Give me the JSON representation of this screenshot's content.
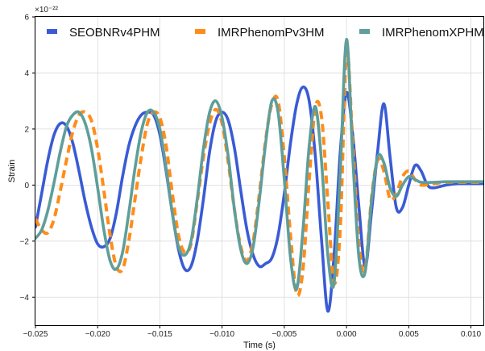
{
  "chart_data": {
    "type": "line",
    "xlabel": "Time (s)",
    "ylabel": "Strain",
    "y_scale_label": "×10⁻²²",
    "xlim": [
      -0.025,
      0.011
    ],
    "ylim": [
      -5,
      6
    ],
    "x_ticks": [
      -0.025,
      -0.02,
      -0.015,
      -0.01,
      -0.005,
      0.0,
      0.005,
      0.01
    ],
    "x_tick_labels": [
      "−0.025",
      "−0.020",
      "−0.015",
      "−0.010",
      "−0.005",
      "0.000",
      "0.005",
      "0.010"
    ],
    "y_ticks": [
      -4,
      -2,
      0,
      2,
      4,
      6
    ],
    "y_tick_labels": [
      "−4",
      "−2",
      "0",
      "2",
      "4",
      "6"
    ],
    "grid": true,
    "legend_position": "top",
    "series": [
      {
        "name": "SEOBNRv4PHM",
        "color": "#3a5bd6",
        "style": "solid",
        "points": [
          [
            -0.025,
            -1.5
          ],
          [
            -0.0245,
            -0.3
          ],
          [
            -0.024,
            0.9
          ],
          [
            -0.0235,
            1.8
          ],
          [
            -0.023,
            2.2
          ],
          [
            -0.0225,
            2.1
          ],
          [
            -0.022,
            1.5
          ],
          [
            -0.0215,
            0.5
          ],
          [
            -0.021,
            -0.6
          ],
          [
            -0.0205,
            -1.5
          ],
          [
            -0.02,
            -2.1
          ],
          [
            -0.0195,
            -2.2
          ],
          [
            -0.019,
            -1.9
          ],
          [
            -0.0185,
            -1.0
          ],
          [
            -0.018,
            0.3
          ],
          [
            -0.0175,
            1.4
          ],
          [
            -0.017,
            2.1
          ],
          [
            -0.0165,
            2.5
          ],
          [
            -0.016,
            2.6
          ],
          [
            -0.0155,
            2.5
          ],
          [
            -0.015,
            1.8
          ],
          [
            -0.0145,
            0.5
          ],
          [
            -0.014,
            -1.0
          ],
          [
            -0.0135,
            -2.3
          ],
          [
            -0.013,
            -3.0
          ],
          [
            -0.0125,
            -2.9
          ],
          [
            -0.012,
            -2.0
          ],
          [
            -0.0115,
            -0.5
          ],
          [
            -0.011,
            1.2
          ],
          [
            -0.0105,
            2.3
          ],
          [
            -0.01,
            2.6
          ],
          [
            -0.0095,
            2.3
          ],
          [
            -0.009,
            1.3
          ],
          [
            -0.0085,
            -0.2
          ],
          [
            -0.008,
            -1.6
          ],
          [
            -0.0075,
            -2.5
          ],
          [
            -0.007,
            -2.9
          ],
          [
            -0.0065,
            -2.8
          ],
          [
            -0.006,
            -2.6
          ],
          [
            -0.0055,
            -1.8
          ],
          [
            -0.005,
            -0.3
          ],
          [
            -0.0045,
            1.5
          ],
          [
            -0.004,
            2.9
          ],
          [
            -0.0035,
            3.5
          ],
          [
            -0.003,
            3.0
          ],
          [
            -0.0025,
            1.0
          ],
          [
            -0.002,
            -2.0
          ],
          [
            -0.0015,
            -4.5
          ],
          [
            -0.001,
            -2.5
          ],
          [
            -0.0005,
            1.2
          ],
          [
            0.0,
            3.3
          ],
          [
            0.0005,
            1.8
          ],
          [
            0.001,
            -0.8
          ],
          [
            0.0015,
            -2.9
          ],
          [
            0.002,
            -1.0
          ],
          [
            0.0025,
            1.2
          ],
          [
            0.003,
            2.9
          ],
          [
            0.0035,
            1.0
          ],
          [
            0.004,
            -0.8
          ],
          [
            0.0045,
            -0.8
          ],
          [
            0.005,
            0.0
          ],
          [
            0.0055,
            0.7
          ],
          [
            0.006,
            0.5
          ],
          [
            0.0065,
            0.0
          ],
          [
            0.007,
            -0.1
          ],
          [
            0.008,
            0.0
          ],
          [
            0.009,
            0.05
          ],
          [
            0.01,
            0.05
          ],
          [
            0.011,
            0.05
          ]
        ]
      },
      {
        "name": "IMRPhenomPv3HM",
        "color": "#ff8c1a",
        "style": "dashed",
        "points": [
          [
            -0.025,
            -1.2
          ],
          [
            -0.0245,
            -1.6
          ],
          [
            -0.024,
            -1.7
          ],
          [
            -0.0235,
            -1.2
          ],
          [
            -0.023,
            -0.2
          ],
          [
            -0.0225,
            0.9
          ],
          [
            -0.022,
            1.9
          ],
          [
            -0.0215,
            2.5
          ],
          [
            -0.021,
            2.6
          ],
          [
            -0.0205,
            2.3
          ],
          [
            -0.02,
            1.3
          ],
          [
            -0.0195,
            -0.2
          ],
          [
            -0.019,
            -1.8
          ],
          [
            -0.0185,
            -2.9
          ],
          [
            -0.018,
            -3.0
          ],
          [
            -0.0175,
            -2.0
          ],
          [
            -0.017,
            -0.5
          ],
          [
            -0.0165,
            1.0
          ],
          [
            -0.016,
            2.2
          ],
          [
            -0.0155,
            2.6
          ],
          [
            -0.015,
            2.4
          ],
          [
            -0.0145,
            1.4
          ],
          [
            -0.014,
            -0.3
          ],
          [
            -0.0135,
            -1.8
          ],
          [
            -0.013,
            -2.4
          ],
          [
            -0.0125,
            -2.1
          ],
          [
            -0.012,
            -0.6
          ],
          [
            -0.0115,
            1.0
          ],
          [
            -0.011,
            2.2
          ],
          [
            -0.0105,
            2.7
          ],
          [
            -0.01,
            2.2
          ],
          [
            -0.0095,
            0.8
          ],
          [
            -0.009,
            -0.9
          ],
          [
            -0.0085,
            -2.2
          ],
          [
            -0.008,
            -2.7
          ],
          [
            -0.0075,
            -2.0
          ],
          [
            -0.007,
            -0.3
          ],
          [
            -0.0065,
            1.6
          ],
          [
            -0.006,
            2.9
          ],
          [
            -0.0055,
            3.0
          ],
          [
            -0.005,
            1.0
          ],
          [
            -0.0045,
            -1.8
          ],
          [
            -0.004,
            -3.9
          ],
          [
            -0.0035,
            -3.0
          ],
          [
            -0.003,
            0.2
          ],
          [
            -0.0025,
            2.8
          ],
          [
            -0.002,
            2.4
          ],
          [
            -0.0015,
            -0.6
          ],
          [
            -0.001,
            -3.5
          ],
          [
            -0.0005,
            -1.5
          ],
          [
            0.0,
            4.7
          ],
          [
            0.0005,
            1.5
          ],
          [
            0.001,
            -2.1
          ],
          [
            0.0015,
            -3.0
          ],
          [
            0.002,
            -0.5
          ],
          [
            0.0025,
            0.9
          ],
          [
            0.003,
            0.5
          ],
          [
            0.0035,
            -0.5
          ],
          [
            0.004,
            -0.3
          ],
          [
            0.0045,
            0.3
          ],
          [
            0.005,
            0.5
          ],
          [
            0.0055,
            0.2
          ],
          [
            0.006,
            0.0
          ],
          [
            0.007,
            0.05
          ],
          [
            0.008,
            0.1
          ],
          [
            0.009,
            0.1
          ],
          [
            0.01,
            0.1
          ],
          [
            0.011,
            0.1
          ]
        ]
      },
      {
        "name": "IMRPhenomXPHM",
        "color": "#5f9e9a",
        "style": "solid",
        "points": [
          [
            -0.025,
            -1.9
          ],
          [
            -0.0245,
            -1.6
          ],
          [
            -0.024,
            -0.9
          ],
          [
            -0.0235,
            0.1
          ],
          [
            -0.023,
            1.2
          ],
          [
            -0.0225,
            2.1
          ],
          [
            -0.022,
            2.5
          ],
          [
            -0.0215,
            2.6
          ],
          [
            -0.021,
            2.2
          ],
          [
            -0.0205,
            1.3
          ],
          [
            -0.02,
            -0.1
          ],
          [
            -0.0195,
            -1.6
          ],
          [
            -0.019,
            -2.7
          ],
          [
            -0.0185,
            -3.0
          ],
          [
            -0.018,
            -2.4
          ],
          [
            -0.0175,
            -1.0
          ],
          [
            -0.017,
            0.6
          ],
          [
            -0.0165,
            1.9
          ],
          [
            -0.016,
            2.6
          ],
          [
            -0.0155,
            2.6
          ],
          [
            -0.015,
            2.0
          ],
          [
            -0.0145,
            0.6
          ],
          [
            -0.014,
            -1.0
          ],
          [
            -0.0135,
            -2.2
          ],
          [
            -0.013,
            -2.5
          ],
          [
            -0.0125,
            -2.0
          ],
          [
            -0.012,
            -0.5
          ],
          [
            -0.0115,
            1.3
          ],
          [
            -0.011,
            2.6
          ],
          [
            -0.0105,
            3.0
          ],
          [
            -0.01,
            2.4
          ],
          [
            -0.0095,
            1.0
          ],
          [
            -0.009,
            -0.9
          ],
          [
            -0.0085,
            -2.3
          ],
          [
            -0.008,
            -2.8
          ],
          [
            -0.0075,
            -2.2
          ],
          [
            -0.007,
            -0.5
          ],
          [
            -0.0065,
            1.5
          ],
          [
            -0.006,
            3.0
          ],
          [
            -0.0055,
            2.6
          ],
          [
            -0.005,
            0.2
          ],
          [
            -0.0045,
            -2.6
          ],
          [
            -0.004,
            -3.7
          ],
          [
            -0.0035,
            -1.6
          ],
          [
            -0.003,
            1.4
          ],
          [
            -0.0025,
            2.8
          ],
          [
            -0.002,
            0.8
          ],
          [
            -0.0015,
            -2.5
          ],
          [
            -0.001,
            -3.5
          ],
          [
            -0.0005,
            0.5
          ],
          [
            0.0,
            5.2
          ],
          [
            0.0005,
            1.0
          ],
          [
            0.001,
            -2.6
          ],
          [
            0.0015,
            -3.1
          ],
          [
            0.002,
            -0.6
          ],
          [
            0.0025,
            1.0
          ],
          [
            0.003,
            0.8
          ],
          [
            0.0035,
            -0.1
          ],
          [
            0.004,
            -0.4
          ],
          [
            0.0045,
            0.0
          ],
          [
            0.005,
            0.3
          ],
          [
            0.0055,
            0.2
          ],
          [
            0.006,
            0.1
          ],
          [
            0.007,
            0.1
          ],
          [
            0.008,
            0.12
          ],
          [
            0.009,
            0.12
          ],
          [
            0.01,
            0.12
          ],
          [
            0.011,
            0.12
          ]
        ]
      }
    ]
  }
}
